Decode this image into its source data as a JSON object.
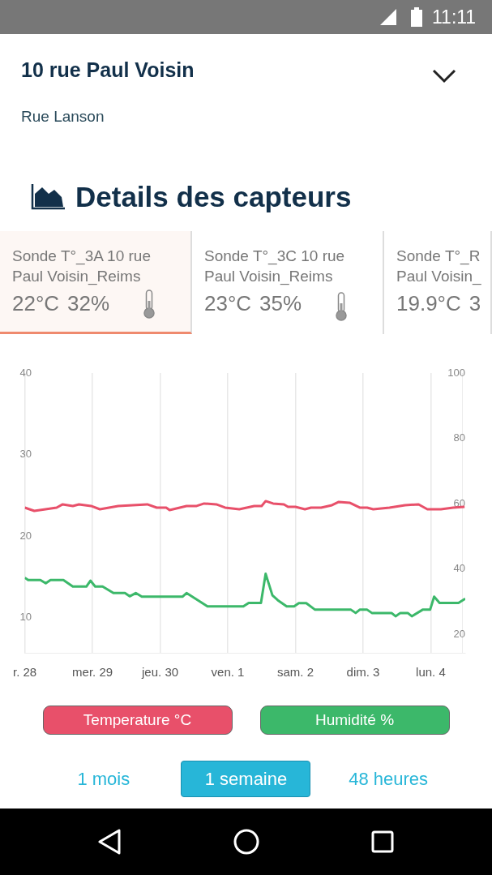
{
  "chart_data": {
    "type": "line",
    "title": "Details des capteurs",
    "subtitle": "10 rue Paul Voisin",
    "annotations": [
      "11:11",
      "Rue Lanson",
      "Sonde T°_3A 10 rue Paul Voisin_Reims",
      "22°C",
      "32%",
      "Sonde T°_3C 10 rue Paul Voisin_Reims",
      "23°C",
      "35%",
      "Sonde T°_R Paul Voisin_",
      "19.9°C",
      "3",
      "1 mois",
      "1 semaine",
      "48 heures"
    ],
    "xticks": [
      {
        "value": "--11-28",
        "label": "r. 28"
      },
      {
        "value": "--11-29",
        "label": "mer. 29"
      },
      {
        "value": "--11-30",
        "label": "jeu. 30"
      },
      {
        "value": "--12-01",
        "label": "ven. 1"
      },
      {
        "value": "--12-02",
        "label": "sam. 2"
      },
      {
        "value": "--12-03",
        "label": "dim. 3"
      },
      {
        "value": "--12-04",
        "label": "lun. 4"
      }
    ],
    "xlim": [
      "--11-28",
      "--12-04T12:14"
    ],
    "ylim": [
      5.7,
      40
    ],
    "yticks": [
      10,
      20,
      30,
      40
    ],
    "y2lim": [
      14.3,
      100
    ],
    "y2ticks": [
      20,
      40,
      60,
      80,
      100
    ],
    "grid": "x",
    "legend": "bottom",
    "marker": "none",
    "line_style": "solid",
    "series": [
      {
        "name": "Temperature °C",
        "color": "#e8506a",
        "x": [
          "--11-28T00:00",
          "--11-28T03:22",
          "--11-28T11:17",
          "--11-28T13:26",
          "--11-28T17:02",
          "--11-28T19:12",
          "--11-28T23:31",
          "--11-29T02:38",
          "--11-29T09:07",
          "--11-29T19:26",
          "--11-29T22:48",
          "--11-30T02:10",
          "--11-30T03:22",
          "--11-30T09:22",
          "--11-30T12:58",
          "--11-30T15:36",
          "--11-30T19:55",
          "--11-30T23:02",
          "--12-01T04:05",
          "--12-01T09:22",
          "--12-01T12:00",
          "--12-01T13:26",
          "--12-01T16:05",
          "--12-01T19:55",
          "--12-01T21:22",
          "--12-02T00:00",
          "--12-02T03:22",
          "--12-02T05:31",
          "--12-02T09:07",
          "--12-02T12:58",
          "--12-02T15:22",
          "--12-02T19:12",
          "--12-02T22:48",
          "--12-03T01:26",
          "--12-03T03:36",
          "--12-03T09:22",
          "--12-03T14:53",
          "--12-03T19:41",
          "--12-03T22:48",
          "--12-04T01:12",
          "--12-04T03:36",
          "--12-04T07:55",
          "--12-04T12:00"
        ],
        "values": [
          23.5,
          23.1,
          23.5,
          23.9,
          23.7,
          23.9,
          23.7,
          23.3,
          23.7,
          23.9,
          23.5,
          23.5,
          23.2,
          23.7,
          23.7,
          24.0,
          23.9,
          23.5,
          23.3,
          23.7,
          23.7,
          24.3,
          24.0,
          23.9,
          23.6,
          23.6,
          23.3,
          23.5,
          23.5,
          23.8,
          24.2,
          24.1,
          23.5,
          23.5,
          23.3,
          23.5,
          23.8,
          23.9,
          23.3,
          23.3,
          23.3,
          23.5,
          23.6
        ]
      },
      {
        "name": "Humidité %",
        "color": "#3cb86a",
        "axis": "y2",
        "x": [
          "--11-28T00:00",
          "--11-28T01:12",
          "--11-28T05:31",
          "--11-28T07:26",
          "--11-28T09:07",
          "--11-28T13:41",
          "--11-28T17:02",
          "--11-28T21:50",
          "--11-28T23:17",
          "--11-29T00:58",
          "--11-29T03:36",
          "--11-29T07:26",
          "--11-29T11:31",
          "--11-29T13:12",
          "--11-29T15:22",
          "--11-29T17:31",
          "--11-30T07:55",
          "--11-30T09:22",
          "--11-30T16:48",
          "--12-01T05:31",
          "--12-01T07:26",
          "--12-01T11:46",
          "--12-01T13:26",
          "--12-01T15:50",
          "--12-01T17:46",
          "--12-01T20:53",
          "--12-01T23:31",
          "--12-02T01:12",
          "--12-02T03:50",
          "--12-02T06:58",
          "--12-02T19:41",
          "--12-02T21:22",
          "--12-02T22:48",
          "--12-03T01:26",
          "--12-03T03:07",
          "--12-03T10:05",
          "--12-03T11:31",
          "--12-03T13:12",
          "--12-03T15:50",
          "--12-03T17:17",
          "--12-03T21:07",
          "--12-03T23:46",
          "--12-04T01:12",
          "--12-04T03:07",
          "--12-04T09:50",
          "--12-04T12:14"
        ],
        "values": [
          37.3,
          36.6,
          36.6,
          35.6,
          36.6,
          36.6,
          34.6,
          34.6,
          36.4,
          34.6,
          34.6,
          32.6,
          32.6,
          31.6,
          32.6,
          31.5,
          31.5,
          32.6,
          28.5,
          28.5,
          29.6,
          29.6,
          38.5,
          31.9,
          30.4,
          28.5,
          28.5,
          29.5,
          29.5,
          27.5,
          27.5,
          26.5,
          27.5,
          27.5,
          26.5,
          26.5,
          25.5,
          26.5,
          26.5,
          25.5,
          27.5,
          27.5,
          31.5,
          29.6,
          29.6,
          30.9
        ]
      }
    ]
  }
}
